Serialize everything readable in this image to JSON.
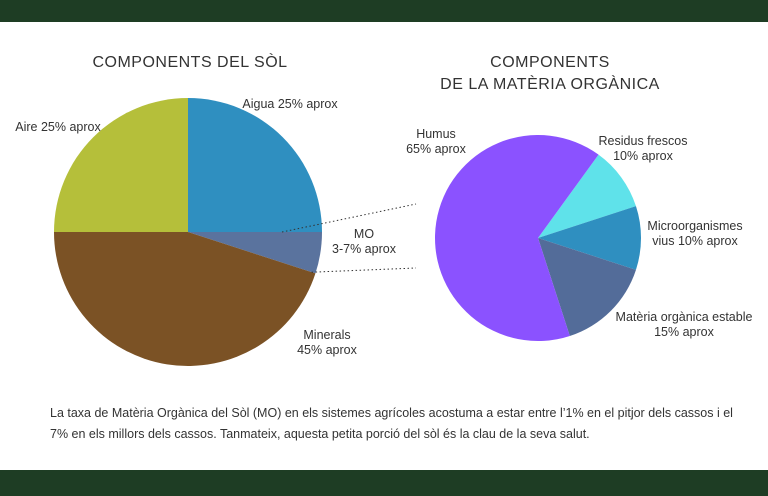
{
  "colors": {
    "band": "#1e3d24",
    "aire": "#b5bf3a",
    "aigua": "#2f8fc0",
    "mo": "#5a739e",
    "minerals": "#7b5225",
    "humus": "#8b52ff",
    "residus": "#5fe2ea",
    "microorganismes": "#2f8fc0",
    "materia_estable": "#536c99"
  },
  "chart_data": [
    {
      "type": "pie",
      "title": "COMPONENTS DEL SÒL",
      "slices": [
        {
          "label": "Aigua 25% aprox",
          "value": 25,
          "color_key": "aigua"
        },
        {
          "label": "MO\n3-7% aprox",
          "value": 5,
          "color_key": "mo"
        },
        {
          "label": "Minerals\n45% aprox",
          "value": 45,
          "color_key": "minerals"
        },
        {
          "label": "Aire 25% aprox",
          "value": 25,
          "color_key": "aire"
        }
      ]
    },
    {
      "type": "pie",
      "title": "COMPONENTS\nDE LA MATÈRIA ORGÀNICA",
      "slices": [
        {
          "label": "Residus frescos\n10% aprox",
          "value": 10,
          "color_key": "residus"
        },
        {
          "label": "Microorganismes\nvius 10% aprox",
          "value": 10,
          "color_key": "microorganismes"
        },
        {
          "label": "Matèria orgànica estable\n15% aprox",
          "value": 15,
          "color_key": "materia_estable"
        },
        {
          "label": "Humus\n65% aprox",
          "value": 65,
          "color_key": "humus"
        }
      ]
    }
  ],
  "caption": "La taxa de Matèria Orgànica del Sòl (MO) en els sistemes agrícoles acostuma a estar entre l’1% en el pitjor dels cassos i el 7% en els millors dels cassos. Tanmateix, aquesta petita porció del sòl és la clau de la seva salut."
}
